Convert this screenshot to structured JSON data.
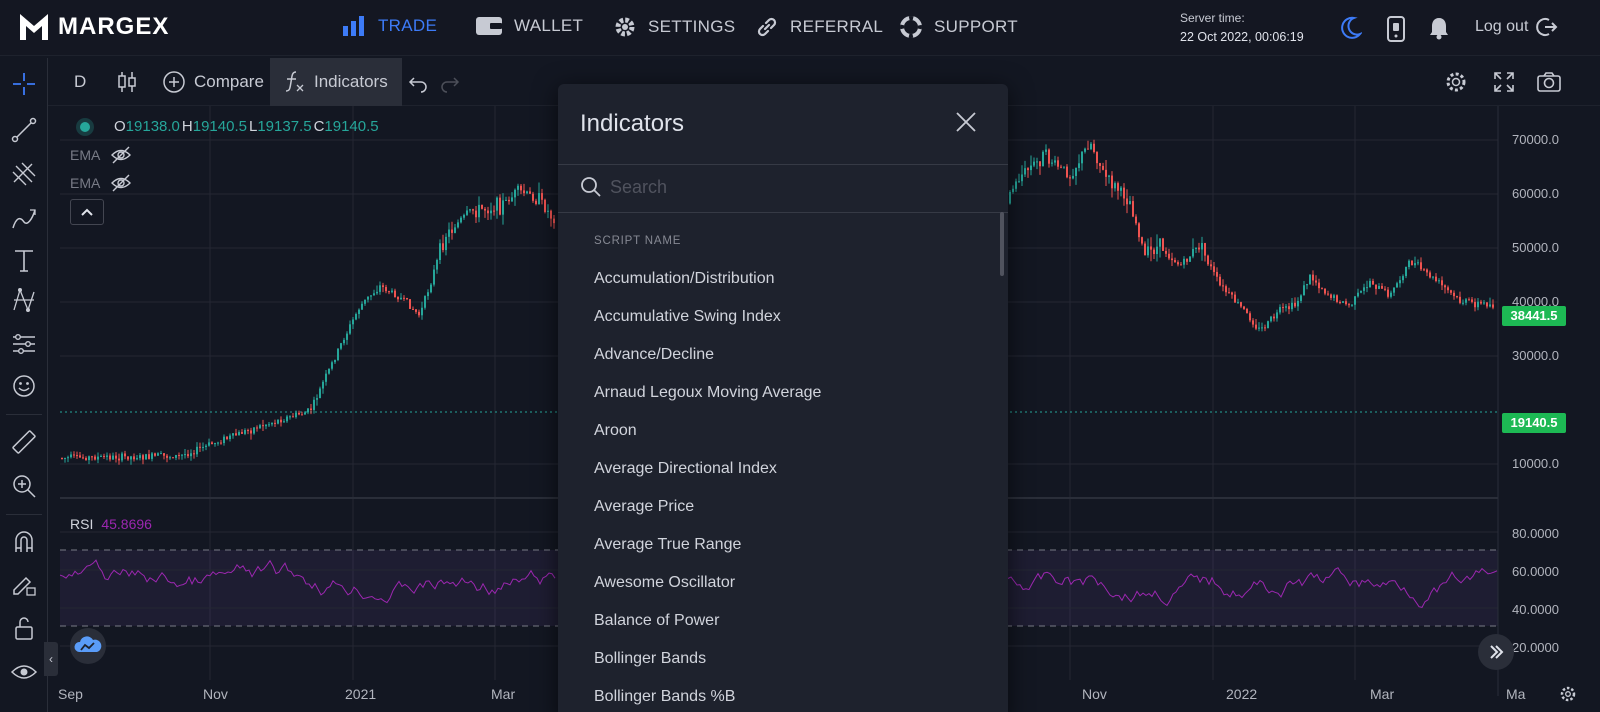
{
  "nav": {
    "brand": "MARGEX",
    "items": [
      {
        "label": "TRADE",
        "icon": "bar-chart-icon",
        "active": true
      },
      {
        "label": "WALLET",
        "icon": "wallet-icon"
      },
      {
        "label": "SETTINGS",
        "icon": "gear-icon"
      },
      {
        "label": "REFERRAL",
        "icon": "link-icon"
      },
      {
        "label": "SUPPORT",
        "icon": "lifebuoy-icon"
      }
    ],
    "server_time_label": "Server time:",
    "server_time_value": "22 Oct 2022, 00:06:19",
    "logout_label": "Log out"
  },
  "toolbar": {
    "interval": "D",
    "compare_label": "Compare",
    "indicators_label": "Indicators"
  },
  "legend": {
    "o_label": "O",
    "o_value": "19138.0",
    "h_label": "H",
    "h_value": "19140.5",
    "l_label": "L",
    "l_value": "19137.5",
    "c_label": "C",
    "c_value": "19140.5",
    "ema1": "EMA",
    "ema2": "EMA",
    "rsi_label": "RSI",
    "rsi_value": "45.8696"
  },
  "price_axis": {
    "ticks": [
      "70000.0",
      "60000.0",
      "50000.0",
      "40000.0",
      "30000.0",
      "10000.0"
    ],
    "last_price": "38441.5",
    "current_price": "19140.5",
    "rsi_ticks": [
      "80.0000",
      "60.0000",
      "40.0000",
      "20.0000"
    ]
  },
  "time_axis": {
    "ticks": [
      "Sep",
      "Nov",
      "2021",
      "Mar",
      "Nov",
      "2022",
      "Mar",
      "Ma"
    ]
  },
  "colors": {
    "up": "#26a69a",
    "down": "#ef5350",
    "accent": "#3d7bf7",
    "rsi": "#9c27b0",
    "price_tag": "#1db954"
  },
  "modal": {
    "title": "Indicators",
    "search_placeholder": "Search",
    "section_header": "SCRIPT NAME",
    "items": [
      "Accumulation/Distribution",
      "Accumulative Swing Index",
      "Advance/Decline",
      "Arnaud Legoux Moving Average",
      "Aroon",
      "Average Directional Index",
      "Average Price",
      "Average True Range",
      "Awesome Oscillator",
      "Balance of Power",
      "Bollinger Bands",
      "Bollinger Bands %B"
    ]
  }
}
